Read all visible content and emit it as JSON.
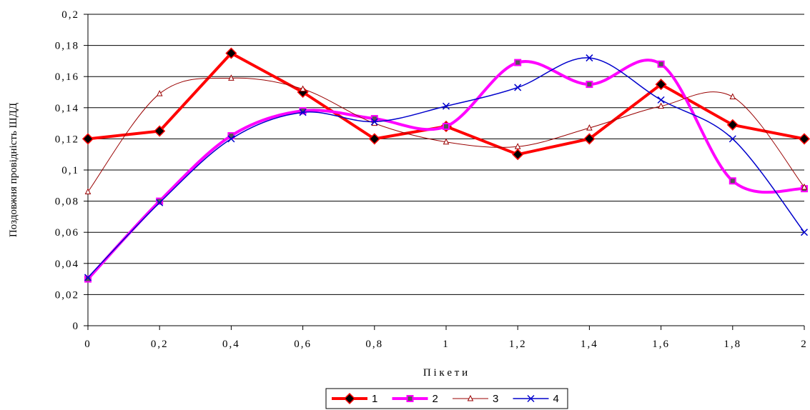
{
  "chart_data": {
    "type": "line",
    "xlabel": "П і к е т и",
    "ylabel": "Поздовжня провідність ШДД",
    "x": [
      0,
      0.2,
      0.4,
      0.6,
      0.8,
      1,
      1.2,
      1.4,
      1.6,
      1.8,
      2
    ],
    "x_tick_labels": [
      "0",
      "0,2",
      "0,4",
      "0,6",
      "0,8",
      "1",
      "1,2",
      "1,4",
      "1,6",
      "1,8",
      "2"
    ],
    "y_tick_labels": [
      "0",
      "0,02",
      "0,04",
      "0,06",
      "0,08",
      "0,1",
      "0,12",
      "0,14",
      "0,16",
      "0,18",
      "0,2"
    ],
    "xlim": [
      0,
      2
    ],
    "ylim": [
      0,
      0.2
    ],
    "grid": "horizontal",
    "legend_position": "bottom",
    "series": [
      {
        "name": "1",
        "color": "#ff0000",
        "marker": "diamond",
        "smooth": false,
        "values": [
          0.12,
          0.125,
          0.175,
          0.15,
          0.12,
          0.128,
          0.11,
          0.12,
          0.155,
          0.129,
          0.12
        ]
      },
      {
        "name": "2",
        "color": "#ff00ff",
        "marker": "square",
        "smooth": true,
        "values": [
          0.03,
          0.08,
          0.122,
          0.138,
          0.133,
          0.128,
          0.169,
          0.155,
          0.168,
          0.093,
          0.088
        ]
      },
      {
        "name": "3",
        "color": "#990000",
        "marker": "triangle",
        "smooth": true,
        "values": [
          0.086,
          0.149,
          0.159,
          0.152,
          0.13,
          0.118,
          0.115,
          0.127,
          0.141,
          0.147,
          0.089
        ]
      },
      {
        "name": "4",
        "color": "#0000cc",
        "marker": "x",
        "smooth": true,
        "values": [
          0.031,
          0.079,
          0.12,
          0.137,
          0.131,
          0.141,
          0.153,
          0.172,
          0.145,
          0.12,
          0.06
        ]
      }
    ]
  }
}
